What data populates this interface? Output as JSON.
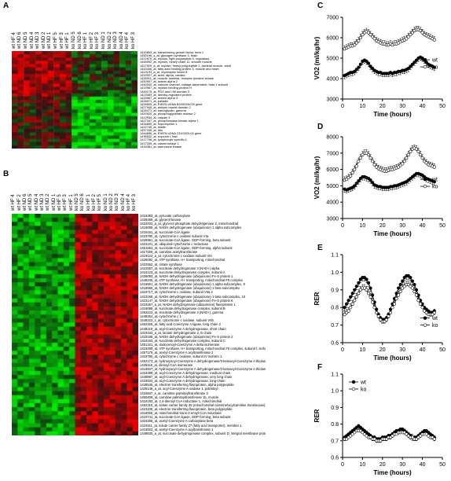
{
  "panels": {
    "A": {
      "letter": "A",
      "columns": [
        "wt HF 4",
        "wt ND 6",
        "wt ND 5",
        "wt ND 4",
        "wt ND 3",
        "wt ND 2",
        "wt ND 1",
        "wt HF 5",
        "wt HF 3",
        "wt HF 1",
        "ko ND 5",
        "ko ND 6",
        "ko HF 1",
        "ko HF 2",
        "ko HF 3",
        "ko ND 1",
        "ko ND 2",
        "ko ND 3",
        "ko ND 4",
        "ko HF 4",
        "ko HF 3"
      ],
      "genes": [
        "1420653_at, transforming growth factor, beta 1",
        "1450196_s_at, glycogen synthase 3, brain",
        "1422970_at, myosin, light polypeptide 9, regulatory",
        "1448992_at, myosin, heavy chain 11, smooth muscle",
        "1427520_a_at, myosin, heavy polypeptide 1, skeletal muscle, adult",
        "1444406_at, fatty acid binding protein 3, muscle and heart",
        "1419193_a_at, myotrophic factor 6",
        "1415927_at, actin, alpha, cardiac",
        "1426911_at, muscle, skeletal, receptor tyrosine kinase",
        "1440907_at, actinin alpha 2",
        "1440040_at, calcium channel, voltage-dependent, beta 1 subunit",
        "1419967_at, myosin binding protein H",
        "1449175_at, PDZ and LIM domain 3",
        "1422083_at, density-regulated protein",
        "1415967_at, actinin alpha 3",
        "1428071_at, palladin",
        "1426809_at, RIKEN cDNA B430318C09 gene",
        "1427945_at, ankyrin repeat domain 2",
        "1426471_at, sarcoglycan, gamma",
        "1420920_at, phosphoglycerate mutase 2",
        "1422934_at, calpain 3",
        "1427347_at, phosphorylase kinase alpha 1",
        "1434855_at, tropomyosin 1",
        "1422745_at, triadin",
        "1457345_at, titin",
        "1444656_at, RIKEN cDNA 2310002L09 gene",
        "1436632_at, troponin I, fast",
        "1417756_at, lymphocyte specific 1",
        "1417339_at, casein kinase 1",
        "1416361_at, adenosine kinase"
      ]
    },
    "B": {
      "letter": "B",
      "columns": [
        "wt HF 4",
        "wt HF 2",
        "wt ND 6",
        "wt ND 5",
        "wt ND 4",
        "wt ND 3",
        "wt ND 2",
        "wt ND 1",
        "wt HF 5",
        "wt HF 3",
        "wt HF 1",
        "ko ND 5",
        "ko ND 6",
        "ko HF 1",
        "ko HF 2",
        "ko HF 5",
        "ko ND 1",
        "ko ND 2",
        "ko ND 3",
        "ko ND 4",
        "ko HF 4",
        "ko HF 3"
      ],
      "genes": [
        "1416383_at, pyruvate carboxylase",
        "1429369_at, glycerol kinase",
        "1422033_a_at, glycerol phosphate dehydrogenase 2, mitochondrial",
        "1419099_at, NADH dehydrogenase (ubiquinone) 1 alpha subcomplex",
        "1418151_at, succinate-CoA ligase",
        "1423780_at, cytochrome c oxidase subunit VIa",
        "1426961_at, succinate-CoA ligase, GDP-forming, beta subunit",
        "1423101_at, ubiquinol-cytochrome c reductase",
        "1451551_at, succinate-CoA ligase, GDP-forming, alpha subunit",
        "1417006_at, carnitine acetyltransferase",
        "1419123_a_at, cytochrome c oxidase subunit VIII",
        "1426082_at, ATP synthase, H+ transporting, mitochondrial",
        "1422552_at, citrate synthase",
        "1422557_at, isocitrate dehydrogenase 3 (NAD+) alpha",
        "1416123_at, succinate dehydrogenase complex, subunit A",
        "1426093_at, NADH dehydrogenase (ubiquinone) Fe-S protein 1",
        "1448245_at, ATP synthase, H+ transporting, mitochondrial F0 complex",
        "1416661_at, NADH dehydrogenase (ubiquinone) 1 alpha subcomplex, 9",
        "1416660_at, NADH dehydrogenase (ubiquinone) 1 beta subcomplex",
        "1419717_at, cytochrome c oxidase, subunit VIIa 2",
        "1423158_at, NADH dehydrogenase (ubiquinone) 1 beta subcomplex, 10",
        "1423147_at, NADH dehydrogenase (ubiquinone) Fe-S protein 6",
        "1416267_a_at, NADH dehydrogenase (ubiquinone) flavoprotein 1",
        "1419099_at, succinate dehydrogenase complex, subunit B",
        "1452123_at, isocitrate dehydrogenase 3 (NAD+), gamma",
        "1448254_at, cytochrome c 1",
        "1448222_x_at, cytochrome c oxidase, subunit VIIb",
        "1452326_at, fatty acid Coenzyme A ligase, long chain 2",
        "1448219_at, acyl-Coenzyme A dehydrogenase, short chain",
        "1419163_a_at, lactate dehydrogenase 2, B chain",
        "1418196_at, NADH dehydrogenase (ubiquinone) Fe-S protein 2",
        "1416153_at, succinate dehydrogenase complex, subunit C",
        "1451321_at, dodecenoyl-Coenzyme A delta isomerase",
        "1419299_at, ATP synthase, H+ transporting, mitochondrial F0 complex, subunit f, isoform 2",
        "1457179_at, acetyl-Coenzyme A acyltransferase 2",
        "1419780_at, cytochrome c oxidase, subunit IV isoform 1",
        "1452173_at, hydroxyacyl-Coenzyme A dehydrogenase/3-ketoacyl-Coenzyme A thiolase/enoyl-Coenzym...",
        "1428116_at, dienoyl-CoA isomerase",
        "1416947_at, hydroxyacyl-Coenzyme A dehydrogenase/3-ketoacyl-Coenzyme A thiolase/enoyl-Coenzym...",
        "1416489_at, acyl-Coenzyme A dehydrogenase, medium chain",
        "1448987_at, acyl-Coenzyme A dehydrogenase, very long chain",
        "1416933_at, acyl-Coenzyme A dehydrogenase, long-chain",
        "1448545_at, electron transferring flavoprotein, alpha polypeptide",
        "1426148_a_at, acyl-Coenzyme A oxidase 1, palmitoyl",
        "1416947_s_at, carnitine palmitoyltransferase 2",
        "1460409_at, carnitine palmitoyltransferase 1b, muscle",
        "1416193_at, 2,4-dienoyl CoA reductase 1, mitochondrial",
        "1452315_at, solute carrier family 25 (mitochondrial carnitine/acylcarnitine translocase), member 20",
        "1423108_at, electron transferring flavoprotein, beta polypeptide",
        "1416928_at, mitochondrial trans-2-enoyl-CoA reductase",
        "1423741_at, succinate-CoA ligase, GDP-forming, beta subunit",
        "1416266_at, acetyl-Coenzyme A carboxylase beta",
        "1422811_at, solute carrier family 27 (fatty acid transporter), member 1",
        "1415822_at, acetyl-Coenzyme A acyltransferase 1",
        "1448630_a_at, succinate dehydrogenase complex, subunit D, integral membrane protein"
      ]
    },
    "C": {
      "letter": "C",
      "ylabel": "VO2 (ml/kg/hr)",
      "xlabel": "Time (hours)"
    },
    "D": {
      "letter": "D",
      "ylabel": "VO2 (ml/kg/hr)",
      "xlabel": "Time (hours)"
    },
    "E": {
      "letter": "E",
      "ylabel": "RER",
      "xlabel": "Time (hours)"
    },
    "F": {
      "letter": "F",
      "ylabel": "RER",
      "xlabel": "Time (hours)"
    }
  },
  "chart_data": [
    {
      "panel": "C",
      "type": "line",
      "xlabel": "Time (hours)",
      "ylabel": "VO2 (ml/kg/hr)",
      "xlim": [
        0,
        50
      ],
      "ylim": [
        3000,
        7000
      ],
      "xticks": [
        0,
        10,
        20,
        30,
        40,
        50
      ],
      "yticks": [
        3000,
        4000,
        5000,
        6000,
        7000
      ],
      "legend": "right",
      "x": [
        1,
        2,
        3,
        4,
        5,
        6,
        7,
        8,
        9,
        10,
        11,
        12,
        13,
        14,
        15,
        16,
        17,
        18,
        19,
        20,
        21,
        22,
        23,
        24,
        25,
        26,
        27,
        28,
        29,
        30,
        31,
        32,
        33,
        34,
        35,
        36,
        37,
        38,
        39,
        40,
        41,
        42,
        43,
        44,
        45,
        46
      ],
      "series": [
        {
          "name": "wt",
          "marker": "filled-circle",
          "values": [
            4150,
            4200,
            4250,
            4300,
            4300,
            4350,
            4450,
            4550,
            4700,
            4850,
            4900,
            4850,
            4750,
            4600,
            4500,
            4400,
            4350,
            4300,
            4300,
            4250,
            4250,
            4250,
            4250,
            4300,
            4250,
            4300,
            4300,
            4350,
            4350,
            4400,
            4400,
            4450,
            4500,
            4600,
            4700,
            4800,
            4900,
            5000,
            5050,
            5000,
            4900,
            4800,
            4700,
            4650,
            4600,
            4550
          ]
        },
        {
          "name": "ko",
          "marker": "open-circle",
          "values": [
            5450,
            5500,
            5550,
            5600,
            5600,
            5650,
            5750,
            5850,
            6000,
            6150,
            6250,
            6300,
            6250,
            6150,
            6050,
            5950,
            5850,
            5800,
            5750,
            5700,
            5700,
            5650,
            5650,
            5700,
            5650,
            5700,
            5700,
            5750,
            5800,
            5850,
            5900,
            5950,
            6050,
            6150,
            6250,
            6350,
            6400,
            6400,
            6350,
            6250,
            6150,
            6100,
            6050,
            6000,
            5950,
            5900
          ]
        }
      ]
    },
    {
      "panel": "D",
      "type": "line",
      "xlabel": "Time (hours)",
      "ylabel": "VO2 (ml/kg/hr)",
      "xlim": [
        0,
        50
      ],
      "ylim": [
        3000,
        8000
      ],
      "xticks": [
        0,
        10,
        20,
        30,
        40,
        50
      ],
      "yticks": [
        3000,
        4000,
        5000,
        6000,
        7000,
        8000
      ],
      "legend": "right",
      "x": [
        1,
        2,
        3,
        4,
        5,
        6,
        7,
        8,
        9,
        10,
        11,
        12,
        13,
        14,
        15,
        16,
        17,
        18,
        19,
        20,
        21,
        22,
        23,
        24,
        25,
        26,
        27,
        28,
        29,
        30,
        31,
        32,
        33,
        34,
        35,
        36,
        37,
        38,
        39,
        40,
        41,
        42,
        43,
        44,
        45,
        46
      ],
      "series": [
        {
          "name": "wt",
          "marker": "filled-circle",
          "values": [
            4800,
            4750,
            4800,
            4850,
            4900,
            5000,
            5150,
            5300,
            5450,
            5550,
            5550,
            5500,
            5450,
            5350,
            5200,
            5050,
            5000,
            4950,
            4950,
            4900,
            4900,
            4900,
            4900,
            4950,
            4950,
            5000,
            5000,
            5050,
            5100,
            5150,
            5200,
            5250,
            5350,
            5450,
            5550,
            5650,
            5750,
            5750,
            5700,
            5650,
            5550,
            5450,
            5400,
            5350,
            5300,
            5250
          ]
        },
        {
          "name": "ko",
          "marker": "open-circle",
          "values": [
            5350,
            5400,
            5500,
            5600,
            5800,
            6000,
            6200,
            6500,
            6700,
            6900,
            7000,
            7000,
            6900,
            6700,
            6500,
            6300,
            6150,
            6050,
            6000,
            5950,
            5900,
            5900,
            5950,
            6000,
            6000,
            6050,
            6100,
            6150,
            6250,
            6350,
            6500,
            6700,
            6900,
            7100,
            7250,
            7300,
            7250,
            7100,
            6900,
            6700,
            6500,
            6400,
            6300,
            6250,
            6200,
            6150
          ]
        }
      ]
    },
    {
      "panel": "E",
      "type": "line",
      "xlabel": "Time (hours)",
      "ylabel": "RER",
      "xlim": [
        0,
        50
      ],
      "ylim": [
        0.6,
        1.1
      ],
      "xticks": [
        0,
        10,
        20,
        30,
        40,
        50
      ],
      "yticks": [
        0.6,
        0.7,
        0.8,
        0.9,
        1.0,
        1.1
      ],
      "legend": "bottom-right",
      "x": [
        1,
        2,
        3,
        4,
        5,
        6,
        7,
        8,
        9,
        10,
        11,
        12,
        13,
        14,
        15,
        16,
        17,
        18,
        19,
        20,
        21,
        22,
        23,
        24,
        25,
        26,
        27,
        28,
        29,
        30,
        31,
        32,
        33,
        34,
        35,
        36,
        37,
        38,
        39,
        40,
        41,
        42,
        43,
        44,
        45,
        46
      ],
      "series": [
        {
          "name": "wt",
          "marker": "filled-circle",
          "values": [
            0.8,
            0.82,
            0.84,
            0.86,
            0.88,
            0.9,
            0.92,
            0.94,
            0.96,
            0.97,
            0.97,
            0.96,
            0.94,
            0.91,
            0.87,
            0.83,
            0.79,
            0.76,
            0.74,
            0.73,
            0.73,
            0.74,
            0.76,
            0.79,
            0.82,
            0.85,
            0.88,
            0.91,
            0.93,
            0.95,
            0.97,
            0.98,
            0.98,
            0.97,
            0.95,
            0.93,
            0.9,
            0.87,
            0.84,
            0.82,
            0.8,
            0.79,
            0.78,
            0.77,
            0.77,
            0.78
          ]
        },
        {
          "name": "ko",
          "marker": "open-circle",
          "values": [
            0.76,
            0.77,
            0.78,
            0.8,
            0.82,
            0.84,
            0.86,
            0.88,
            0.9,
            0.91,
            0.91,
            0.9,
            0.88,
            0.86,
            0.83,
            0.8,
            0.77,
            0.75,
            0.73,
            0.72,
            0.72,
            0.73,
            0.75,
            0.77,
            0.8,
            0.82,
            0.85,
            0.87,
            0.89,
            0.91,
            0.92,
            0.93,
            0.93,
            0.92,
            0.91,
            0.89,
            0.87,
            0.84,
            0.82,
            0.8,
            0.78,
            0.77,
            0.76,
            0.76,
            0.76,
            0.77
          ]
        }
      ]
    },
    {
      "panel": "F",
      "type": "line",
      "xlabel": "Time (hours)",
      "ylabel": "RER",
      "xlim": [
        0,
        50
      ],
      "ylim": [
        0.6,
        1.1
      ],
      "xticks": [
        0,
        10,
        20,
        30,
        40,
        50
      ],
      "yticks": [
        0.6,
        0.7,
        0.8,
        0.9,
        1.0,
        1.1
      ],
      "legend": "top-left",
      "x": [
        1,
        2,
        3,
        4,
        5,
        6,
        7,
        8,
        9,
        10,
        11,
        12,
        13,
        14,
        15,
        16,
        17,
        18,
        19,
        20,
        21,
        22,
        23,
        24,
        25,
        26,
        27,
        28,
        29,
        30,
        31,
        32,
        33,
        34,
        35,
        36,
        37,
        38,
        39,
        40,
        41,
        42,
        43,
        44,
        45,
        46
      ],
      "series": [
        {
          "name": "wt",
          "marker": "filled-circle",
          "values": [
            0.72,
            0.73,
            0.74,
            0.75,
            0.76,
            0.77,
            0.78,
            0.79,
            0.78,
            0.77,
            0.76,
            0.75,
            0.74,
            0.73,
            0.72,
            0.72,
            0.71,
            0.71,
            0.71,
            0.72,
            0.72,
            0.72,
            0.73,
            0.73,
            0.74,
            0.75,
            0.76,
            0.76,
            0.77,
            0.77,
            0.76,
            0.75,
            0.74,
            0.73,
            0.72,
            0.72,
            0.72,
            0.73,
            0.74,
            0.75,
            0.76,
            0.76,
            0.75,
            0.74,
            0.73,
            0.72
          ]
        },
        {
          "name": "ko",
          "marker": "open-circle",
          "values": [
            0.71,
            0.71,
            0.72,
            0.73,
            0.74,
            0.75,
            0.76,
            0.76,
            0.76,
            0.75,
            0.74,
            0.73,
            0.72,
            0.72,
            0.71,
            0.71,
            0.7,
            0.7,
            0.7,
            0.71,
            0.71,
            0.71,
            0.72,
            0.72,
            0.73,
            0.74,
            0.74,
            0.75,
            0.75,
            0.75,
            0.75,
            0.74,
            0.73,
            0.72,
            0.72,
            0.71,
            0.71,
            0.72,
            0.73,
            0.74,
            0.74,
            0.74,
            0.73,
            0.72,
            0.72,
            0.71
          ]
        }
      ]
    }
  ]
}
